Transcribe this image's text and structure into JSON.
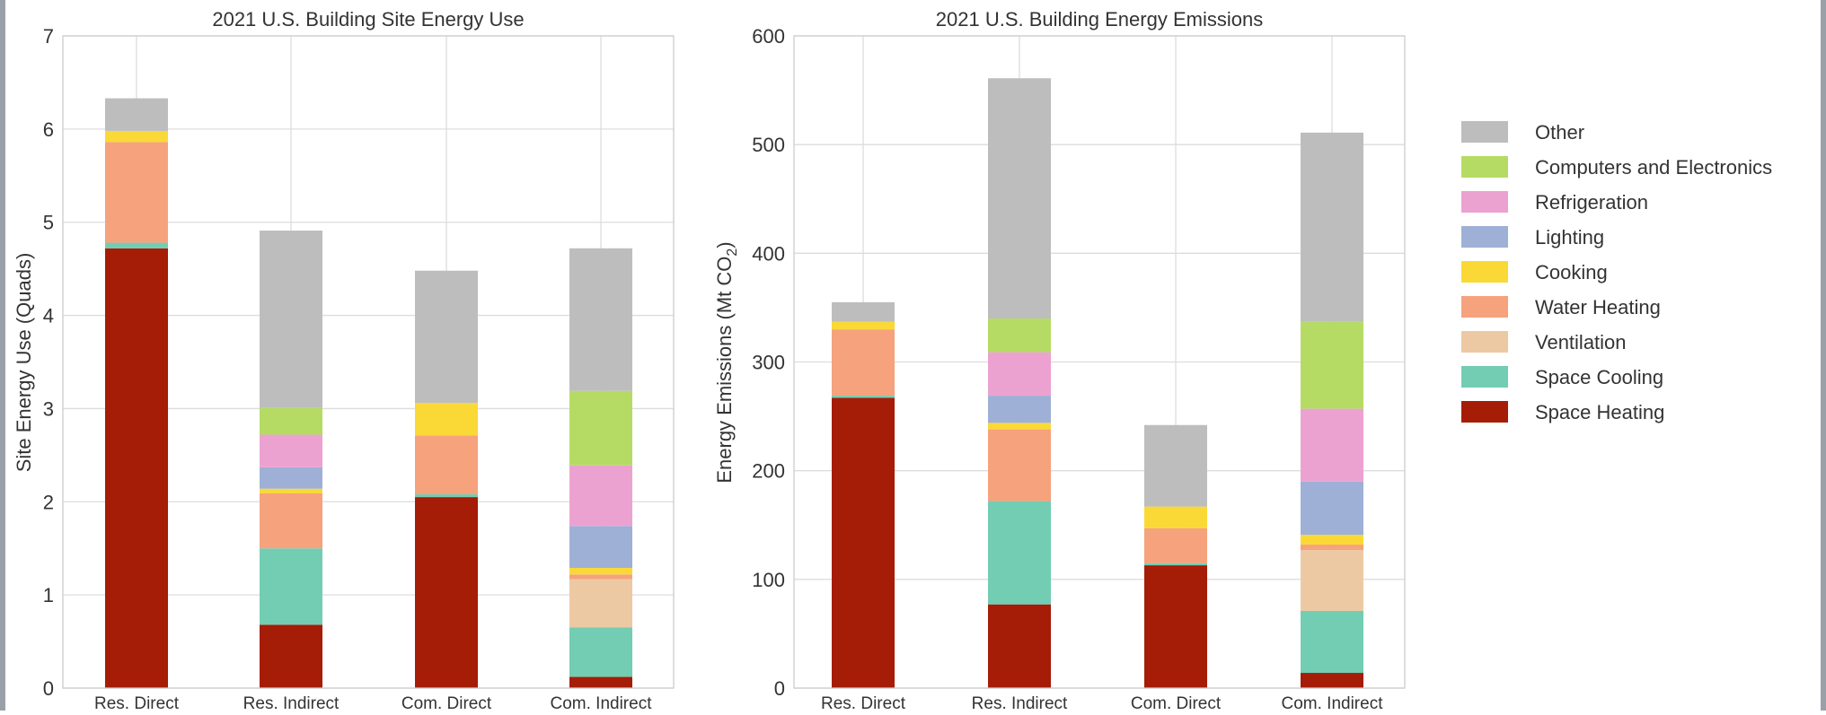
{
  "chart_data": [
    {
      "type": "bar",
      "stacked": true,
      "title": "2021 U.S. Building Site Energy Use",
      "xlabel": "",
      "ylabel": "Site Energy Use (Quads)",
      "ylim": [
        0,
        7
      ],
      "yticks": [
        0,
        1,
        2,
        3,
        4,
        5,
        6,
        7
      ],
      "grid": true,
      "categories": [
        "Res. Direct",
        "Res. Indirect",
        "Com. Direct",
        "Com. Indirect"
      ],
      "series": [
        {
          "name": "Space Heating",
          "color": "#a51c07",
          "values": [
            4.72,
            0.68,
            2.05,
            0.12
          ]
        },
        {
          "name": "Space Cooling",
          "color": "#72cdb3",
          "values": [
            0.06,
            0.82,
            0.03,
            0.53
          ]
        },
        {
          "name": "Ventilation",
          "color": "#ecc9a3",
          "values": [
            0.0,
            0.0,
            0.0,
            0.52
          ]
        },
        {
          "name": "Water Heating",
          "color": "#f5a27d",
          "values": [
            1.08,
            0.59,
            0.63,
            0.05
          ]
        },
        {
          "name": "Cooking",
          "color": "#fad936",
          "values": [
            0.12,
            0.05,
            0.35,
            0.07
          ]
        },
        {
          "name": "Lighting",
          "color": "#9eb0d6",
          "values": [
            0.0,
            0.23,
            0.0,
            0.45
          ]
        },
        {
          "name": "Refrigeration",
          "color": "#eca2d0",
          "values": [
            0.0,
            0.35,
            0.0,
            0.65
          ]
        },
        {
          "name": "Computers and Electronics",
          "color": "#b5db65",
          "values": [
            0.0,
            0.29,
            0.0,
            0.8
          ]
        },
        {
          "name": "Other",
          "color": "#bdbdbd",
          "values": [
            0.35,
            1.9,
            1.42,
            1.53
          ]
        }
      ]
    },
    {
      "type": "bar",
      "stacked": true,
      "title": "2021 U.S. Building Energy Emissions",
      "xlabel": "",
      "ylabel": "Energy Emissions (Mt CO",
      "ylabel_sub": "2",
      "ylabel_end": ")",
      "ylim": [
        0,
        600
      ],
      "yticks": [
        0,
        100,
        200,
        300,
        400,
        500,
        600
      ],
      "grid": true,
      "legend_position": "right",
      "categories": [
        "Res. Direct",
        "Res. Indirect",
        "Com. Direct",
        "Com. Indirect"
      ],
      "series": [
        {
          "name": "Space Heating",
          "color": "#a51c07",
          "values": [
            267,
            77,
            113,
            14
          ]
        },
        {
          "name": "Space Cooling",
          "color": "#72cdb3",
          "values": [
            2,
            95,
            2,
            57
          ]
        },
        {
          "name": "Ventilation",
          "color": "#ecc9a3",
          "values": [
            0,
            0,
            0,
            56
          ]
        },
        {
          "name": "Water Heating",
          "color": "#f5a27d",
          "values": [
            61,
            66,
            32,
            5
          ]
        },
        {
          "name": "Cooking",
          "color": "#fad936",
          "values": [
            7,
            6,
            20,
            9
          ]
        },
        {
          "name": "Lighting",
          "color": "#9eb0d6",
          "values": [
            0,
            25,
            0,
            49
          ]
        },
        {
          "name": "Refrigeration",
          "color": "#eca2d0",
          "values": [
            0,
            40,
            0,
            67
          ]
        },
        {
          "name": "Computers and Electronics",
          "color": "#b5db65",
          "values": [
            0,
            31,
            0,
            80
          ]
        },
        {
          "name": "Other",
          "color": "#bdbdbd",
          "values": [
            18,
            221,
            75,
            174
          ]
        }
      ]
    }
  ],
  "legend": {
    "entries": [
      {
        "label": "Other",
        "color": "#bdbdbd"
      },
      {
        "label": "Computers and Electronics",
        "color": "#b5db65"
      },
      {
        "label": "Refrigeration",
        "color": "#eca2d0"
      },
      {
        "label": "Lighting",
        "color": "#9eb0d6"
      },
      {
        "label": "Cooking",
        "color": "#fad936"
      },
      {
        "label": "Water Heating",
        "color": "#f5a27d"
      },
      {
        "label": "Ventilation",
        "color": "#ecc9a3"
      },
      {
        "label": "Space Cooling",
        "color": "#72cdb3"
      },
      {
        "label": "Space Heating",
        "color": "#a51c07"
      }
    ]
  }
}
